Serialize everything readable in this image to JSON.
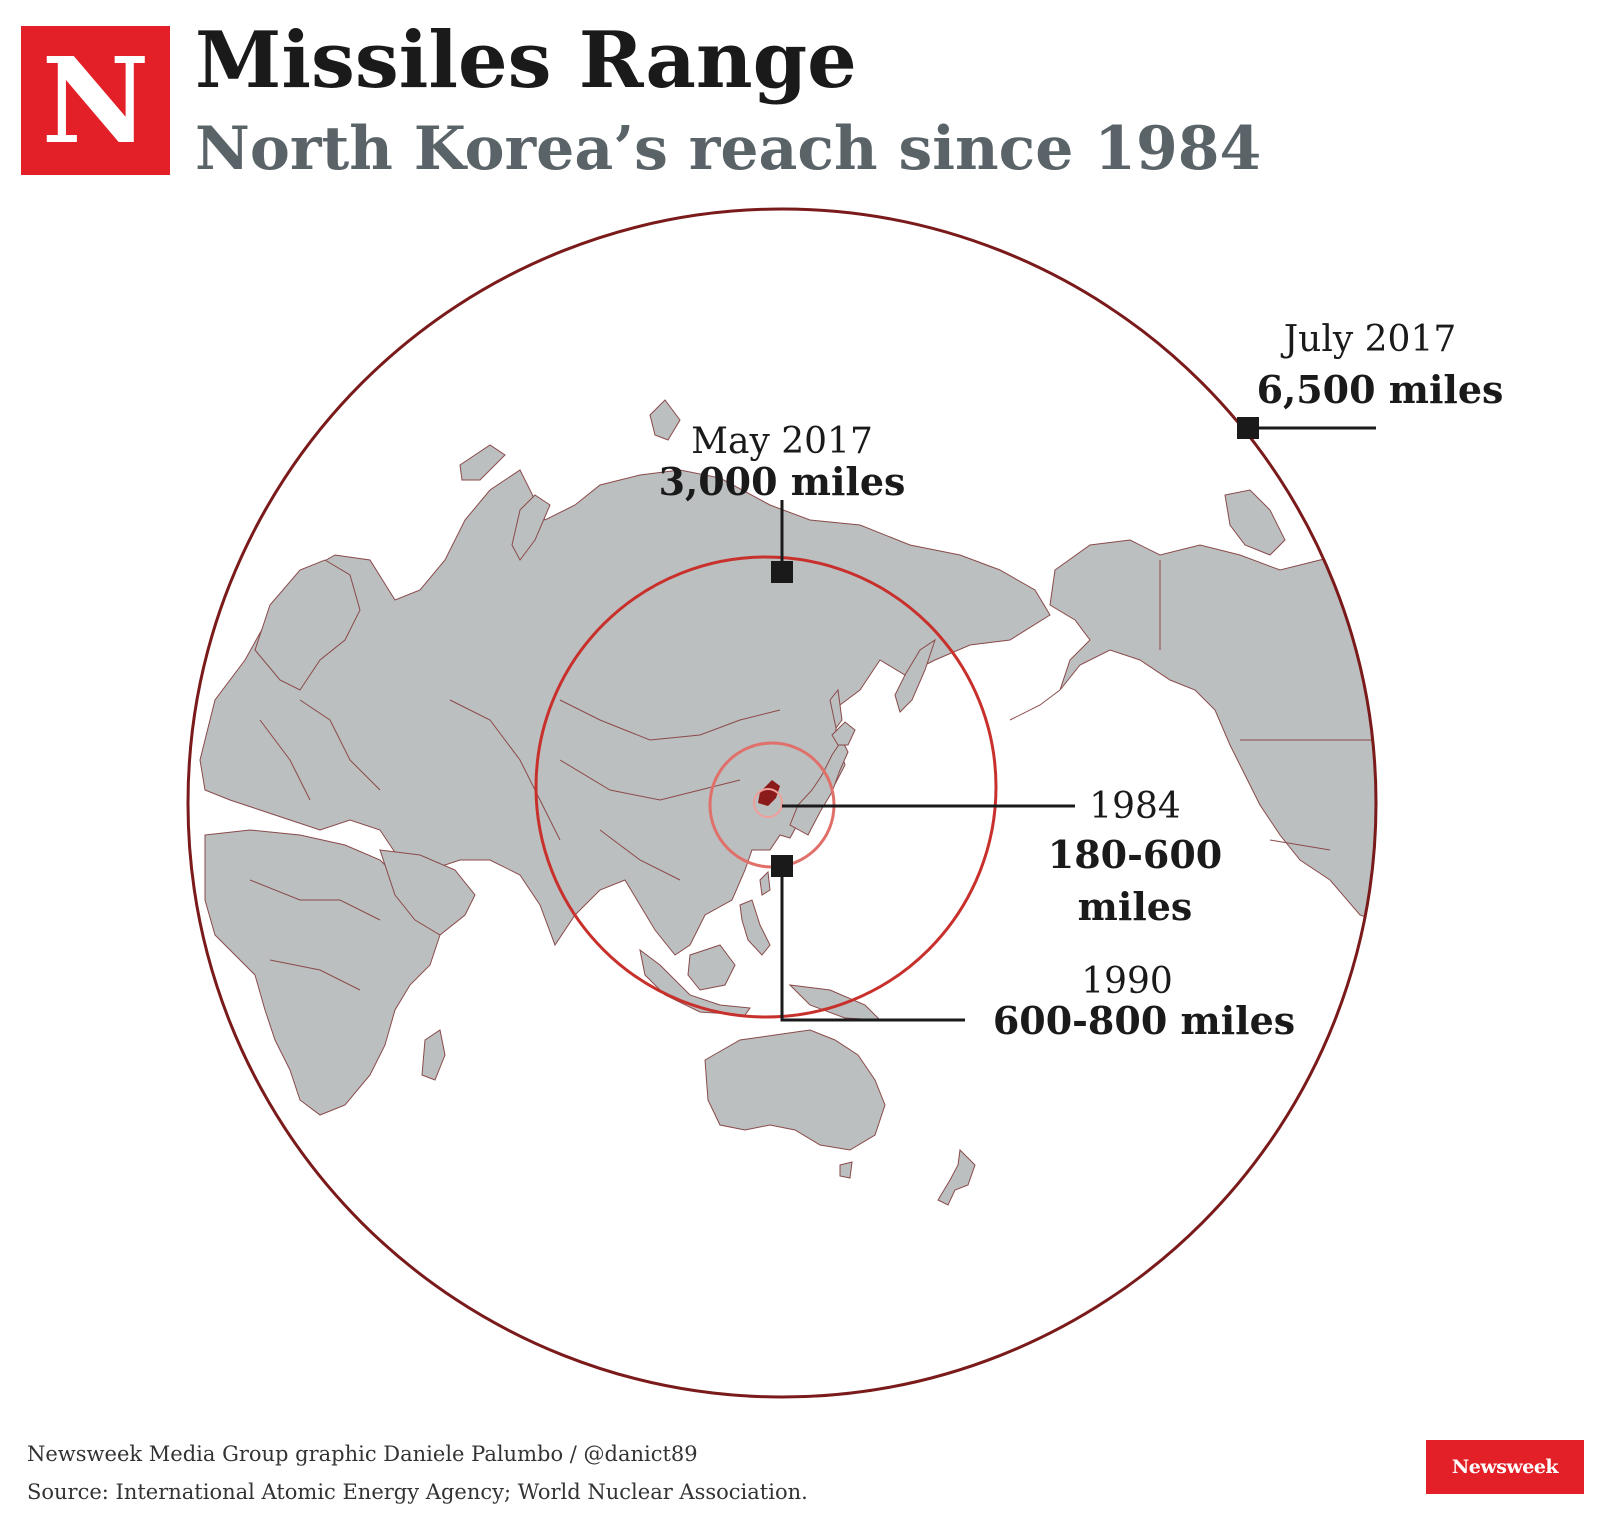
{
  "header": {
    "logo_letter": "N",
    "title": "Missiles Range",
    "subtitle": "North Korea’s reach since 1984"
  },
  "ranges": [
    {
      "date": "1984",
      "range": "180-600",
      "range2": "miles"
    },
    {
      "date": "1990",
      "range": "600-800 miles"
    },
    {
      "date": "May 2017",
      "range": "3,000 miles"
    },
    {
      "date": "July 2017",
      "range": "6,500 miles"
    }
  ],
  "footer": {
    "credit": "Newsweek Media Group graphic Daniele Palumbo / @danict89",
    "source": "Source: International Atomic Energy Agency; World Nuclear Association.",
    "brand": "Newsweek"
  },
  "colors": {
    "brand_red": "#e32028",
    "land": "#bcbfc0",
    "circle_dark": "#7a1a1a",
    "circle_red": "#c8302c",
    "circle_light": "#e0706a",
    "north_korea": "#8b1a1a"
  }
}
